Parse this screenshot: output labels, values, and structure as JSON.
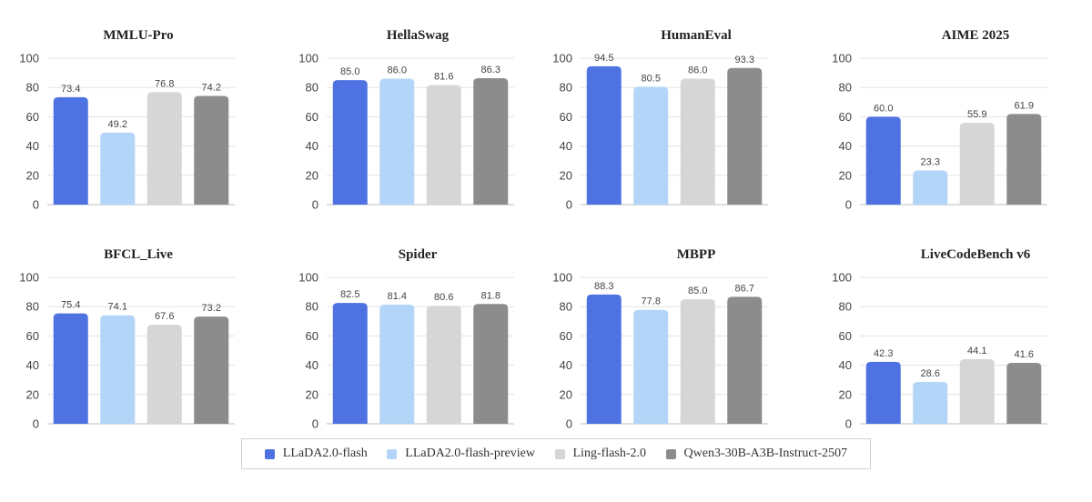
{
  "colors": [
    "#4f72e3",
    "#b3d5f7",
    "#d6d6d6",
    "#8c8c8c"
  ],
  "legend": [
    "LLaDA2.0-flash",
    "LLaDA2.0-flash-preview",
    "Ling-flash-2.0",
    "Qwen3-30B-A3B-Instruct-2507"
  ],
  "chart_data": [
    {
      "type": "bar",
      "title": "MMLU-Pro",
      "categories": [
        "LLaDA2.0-flash",
        "LLaDA2.0-flash-preview",
        "Ling-flash-2.0",
        "Qwen3-30B-A3B-Instruct-2507"
      ],
      "values": [
        73.4,
        49.2,
        76.8,
        74.2
      ],
      "labels": [
        "73.4",
        "49.2",
        "76.8",
        "74.2"
      ],
      "ylim": [
        0,
        100
      ],
      "yticks": [
        "0",
        "20",
        "40",
        "60",
        "80",
        "100"
      ]
    },
    {
      "type": "bar",
      "title": "HellaSwag",
      "categories": [
        "LLaDA2.0-flash",
        "LLaDA2.0-flash-preview",
        "Ling-flash-2.0",
        "Qwen3-30B-A3B-Instruct-2507"
      ],
      "values": [
        85.0,
        86.0,
        81.6,
        86.3
      ],
      "labels": [
        "85.0",
        "86.0",
        "81.6",
        "86.3"
      ],
      "ylim": [
        0,
        100
      ],
      "yticks": [
        "0",
        "20",
        "40",
        "60",
        "80",
        "100"
      ]
    },
    {
      "type": "bar",
      "title": "HumanEval",
      "categories": [
        "LLaDA2.0-flash",
        "LLaDA2.0-flash-preview",
        "Ling-flash-2.0",
        "Qwen3-30B-A3B-Instruct-2507"
      ],
      "values": [
        94.5,
        80.5,
        86.0,
        93.3
      ],
      "labels": [
        "94.5",
        "80.5",
        "86.0",
        "93.3"
      ],
      "ylim": [
        0,
        100
      ],
      "yticks": [
        "0",
        "20",
        "40",
        "60",
        "80",
        "100"
      ]
    },
    {
      "type": "bar",
      "title": "AIME 2025",
      "categories": [
        "LLaDA2.0-flash",
        "LLaDA2.0-flash-preview",
        "Ling-flash-2.0",
        "Qwen3-30B-A3B-Instruct-2507"
      ],
      "values": [
        60.0,
        23.3,
        55.9,
        61.9
      ],
      "labels": [
        "60.0",
        "23.3",
        "55.9",
        "61.9"
      ],
      "ylim": [
        0,
        100
      ],
      "yticks": [
        "0",
        "20",
        "40",
        "60",
        "80",
        "100"
      ]
    },
    {
      "type": "bar",
      "title": "BFCL_Live",
      "categories": [
        "LLaDA2.0-flash",
        "LLaDA2.0-flash-preview",
        "Ling-flash-2.0",
        "Qwen3-30B-A3B-Instruct-2507"
      ],
      "values": [
        75.4,
        74.1,
        67.6,
        73.2
      ],
      "labels": [
        "75.4",
        "74.1",
        "67.6",
        "73.2"
      ],
      "ylim": [
        0,
        100
      ],
      "yticks": [
        "0",
        "20",
        "40",
        "60",
        "80",
        "100"
      ]
    },
    {
      "type": "bar",
      "title": "Spider",
      "categories": [
        "LLaDA2.0-flash",
        "LLaDA2.0-flash-preview",
        "Ling-flash-2.0",
        "Qwen3-30B-A3B-Instruct-2507"
      ],
      "values": [
        82.5,
        81.4,
        80.6,
        81.8
      ],
      "labels": [
        "82.5",
        "81.4",
        "80.6",
        "81.8"
      ],
      "ylim": [
        0,
        100
      ],
      "yticks": [
        "0",
        "20",
        "40",
        "60",
        "80",
        "100"
      ]
    },
    {
      "type": "bar",
      "title": "MBPP",
      "categories": [
        "LLaDA2.0-flash",
        "LLaDA2.0-flash-preview",
        "Ling-flash-2.0",
        "Qwen3-30B-A3B-Instruct-2507"
      ],
      "values": [
        88.3,
        77.8,
        85.0,
        86.7
      ],
      "labels": [
        "88.3",
        "77.8",
        "85.0",
        "86.7"
      ],
      "ylim": [
        0,
        100
      ],
      "yticks": [
        "0",
        "20",
        "40",
        "60",
        "80",
        "100"
      ]
    },
    {
      "type": "bar",
      "title": "LiveCodeBench v6",
      "categories": [
        "LLaDA2.0-flash",
        "LLaDA2.0-flash-preview",
        "Ling-flash-2.0",
        "Qwen3-30B-A3B-Instruct-2507"
      ],
      "values": [
        42.3,
        28.6,
        44.1,
        41.6
      ],
      "labels": [
        "42.3",
        "28.6",
        "44.1",
        "41.6"
      ],
      "ylim": [
        0,
        100
      ],
      "yticks": [
        "0",
        "20",
        "40",
        "60",
        "80",
        "100"
      ]
    }
  ]
}
